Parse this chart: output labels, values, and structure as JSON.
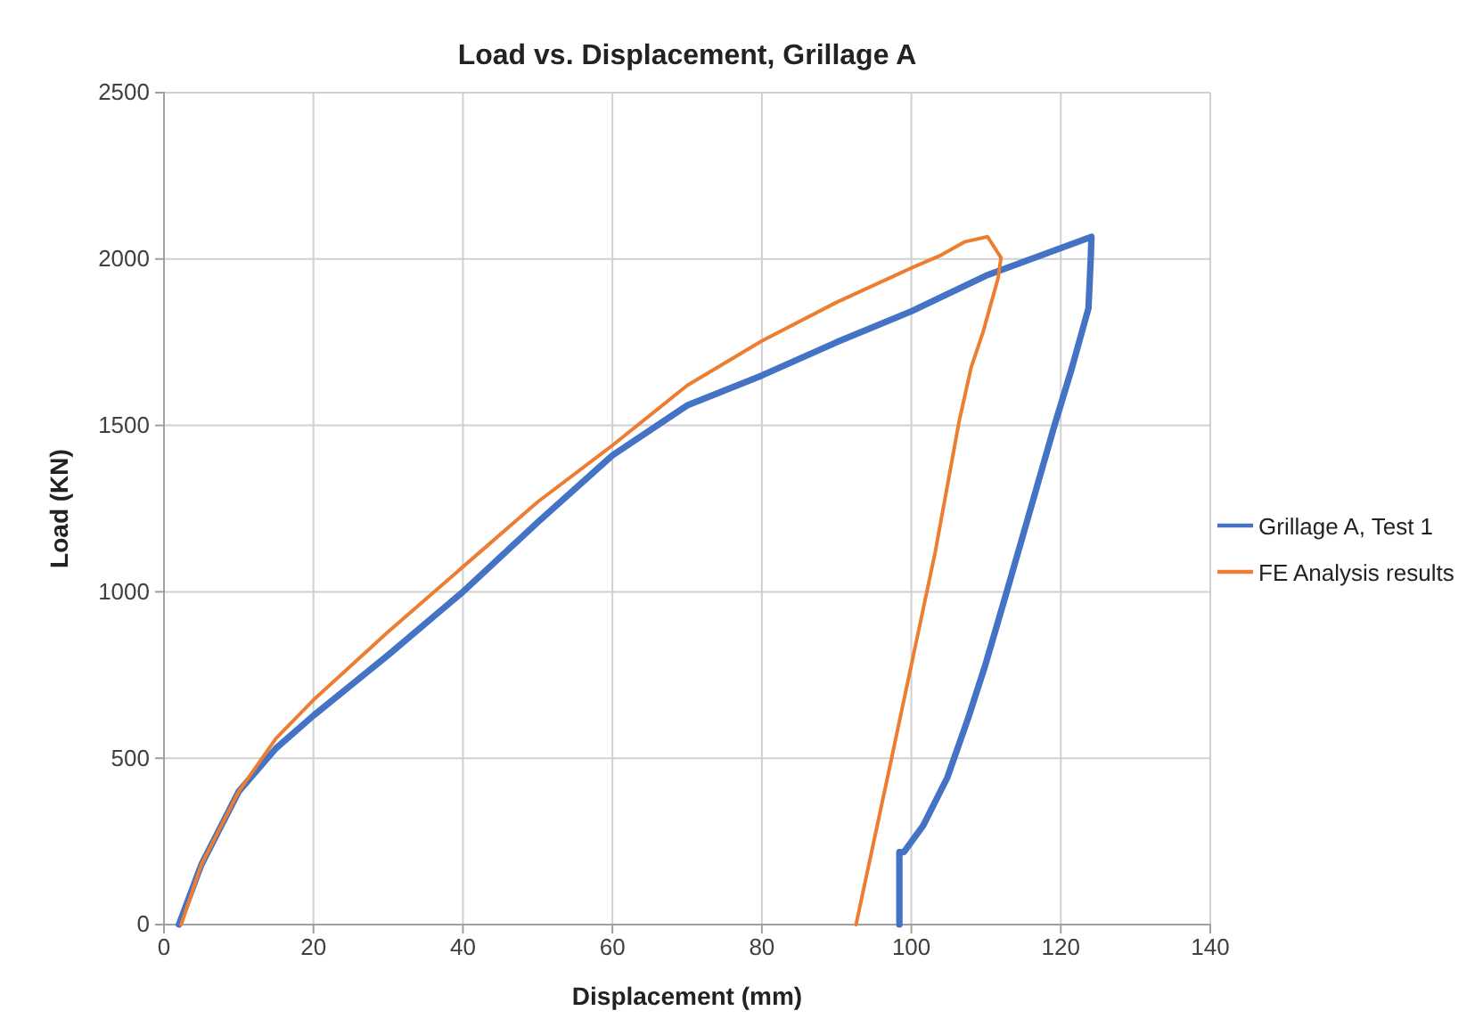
{
  "chart_data": {
    "type": "line",
    "title": "Load vs. Displacement, Grillage A",
    "xlabel": "Displacement (mm)",
    "ylabel": "Load (KN)",
    "xlim": [
      0,
      140
    ],
    "xticks": [
      0,
      20,
      40,
      60,
      80,
      100,
      120,
      140
    ],
    "ylim": [
      0,
      2500
    ],
    "yticks": [
      0,
      500,
      1000,
      1500,
      2000,
      2500
    ],
    "grid": true,
    "legend": "right",
    "marker": "none",
    "line_style": "solid",
    "series": [
      {
        "name": "Grillage A, Test 1",
        "color": "#4472c4",
        "x": [
          2,
          5,
          10,
          15,
          20,
          30,
          40,
          50,
          60,
          70,
          80,
          90,
          100,
          110,
          124.1,
          124,
          123.7,
          121.5,
          119.1,
          115.9,
          112.7,
          109.9,
          107.6,
          104.8,
          101.6,
          99,
          98.4,
          98.4
        ],
        "values": [
          0,
          180,
          400,
          530,
          628,
          810,
          1000,
          1209,
          1410,
          1560,
          1650,
          1750,
          1843,
          1950,
          2067,
          2000,
          1852,
          1674,
          1496,
          1245,
          995,
          780,
          620,
          441,
          298,
          218,
          218,
          0
        ]
      },
      {
        "name": "FE Analysis results",
        "color": "#ed7d31",
        "x": [
          2.3,
          5,
          10,
          15,
          20,
          30,
          40,
          50,
          60,
          70,
          80,
          90,
          100,
          104,
          107.2,
          110.2,
          112,
          111.6,
          109.6,
          108,
          106.4,
          103.2,
          100,
          96.8,
          92.6
        ],
        "values": [
          0,
          180,
          400,
          560,
          675,
          880,
          1075,
          1270,
          1440,
          1620,
          1754,
          1870,
          1973,
          2012,
          2052,
          2067,
          2004,
          1942,
          1781,
          1674,
          1513,
          1120,
          780,
          441,
          0
        ]
      }
    ]
  }
}
